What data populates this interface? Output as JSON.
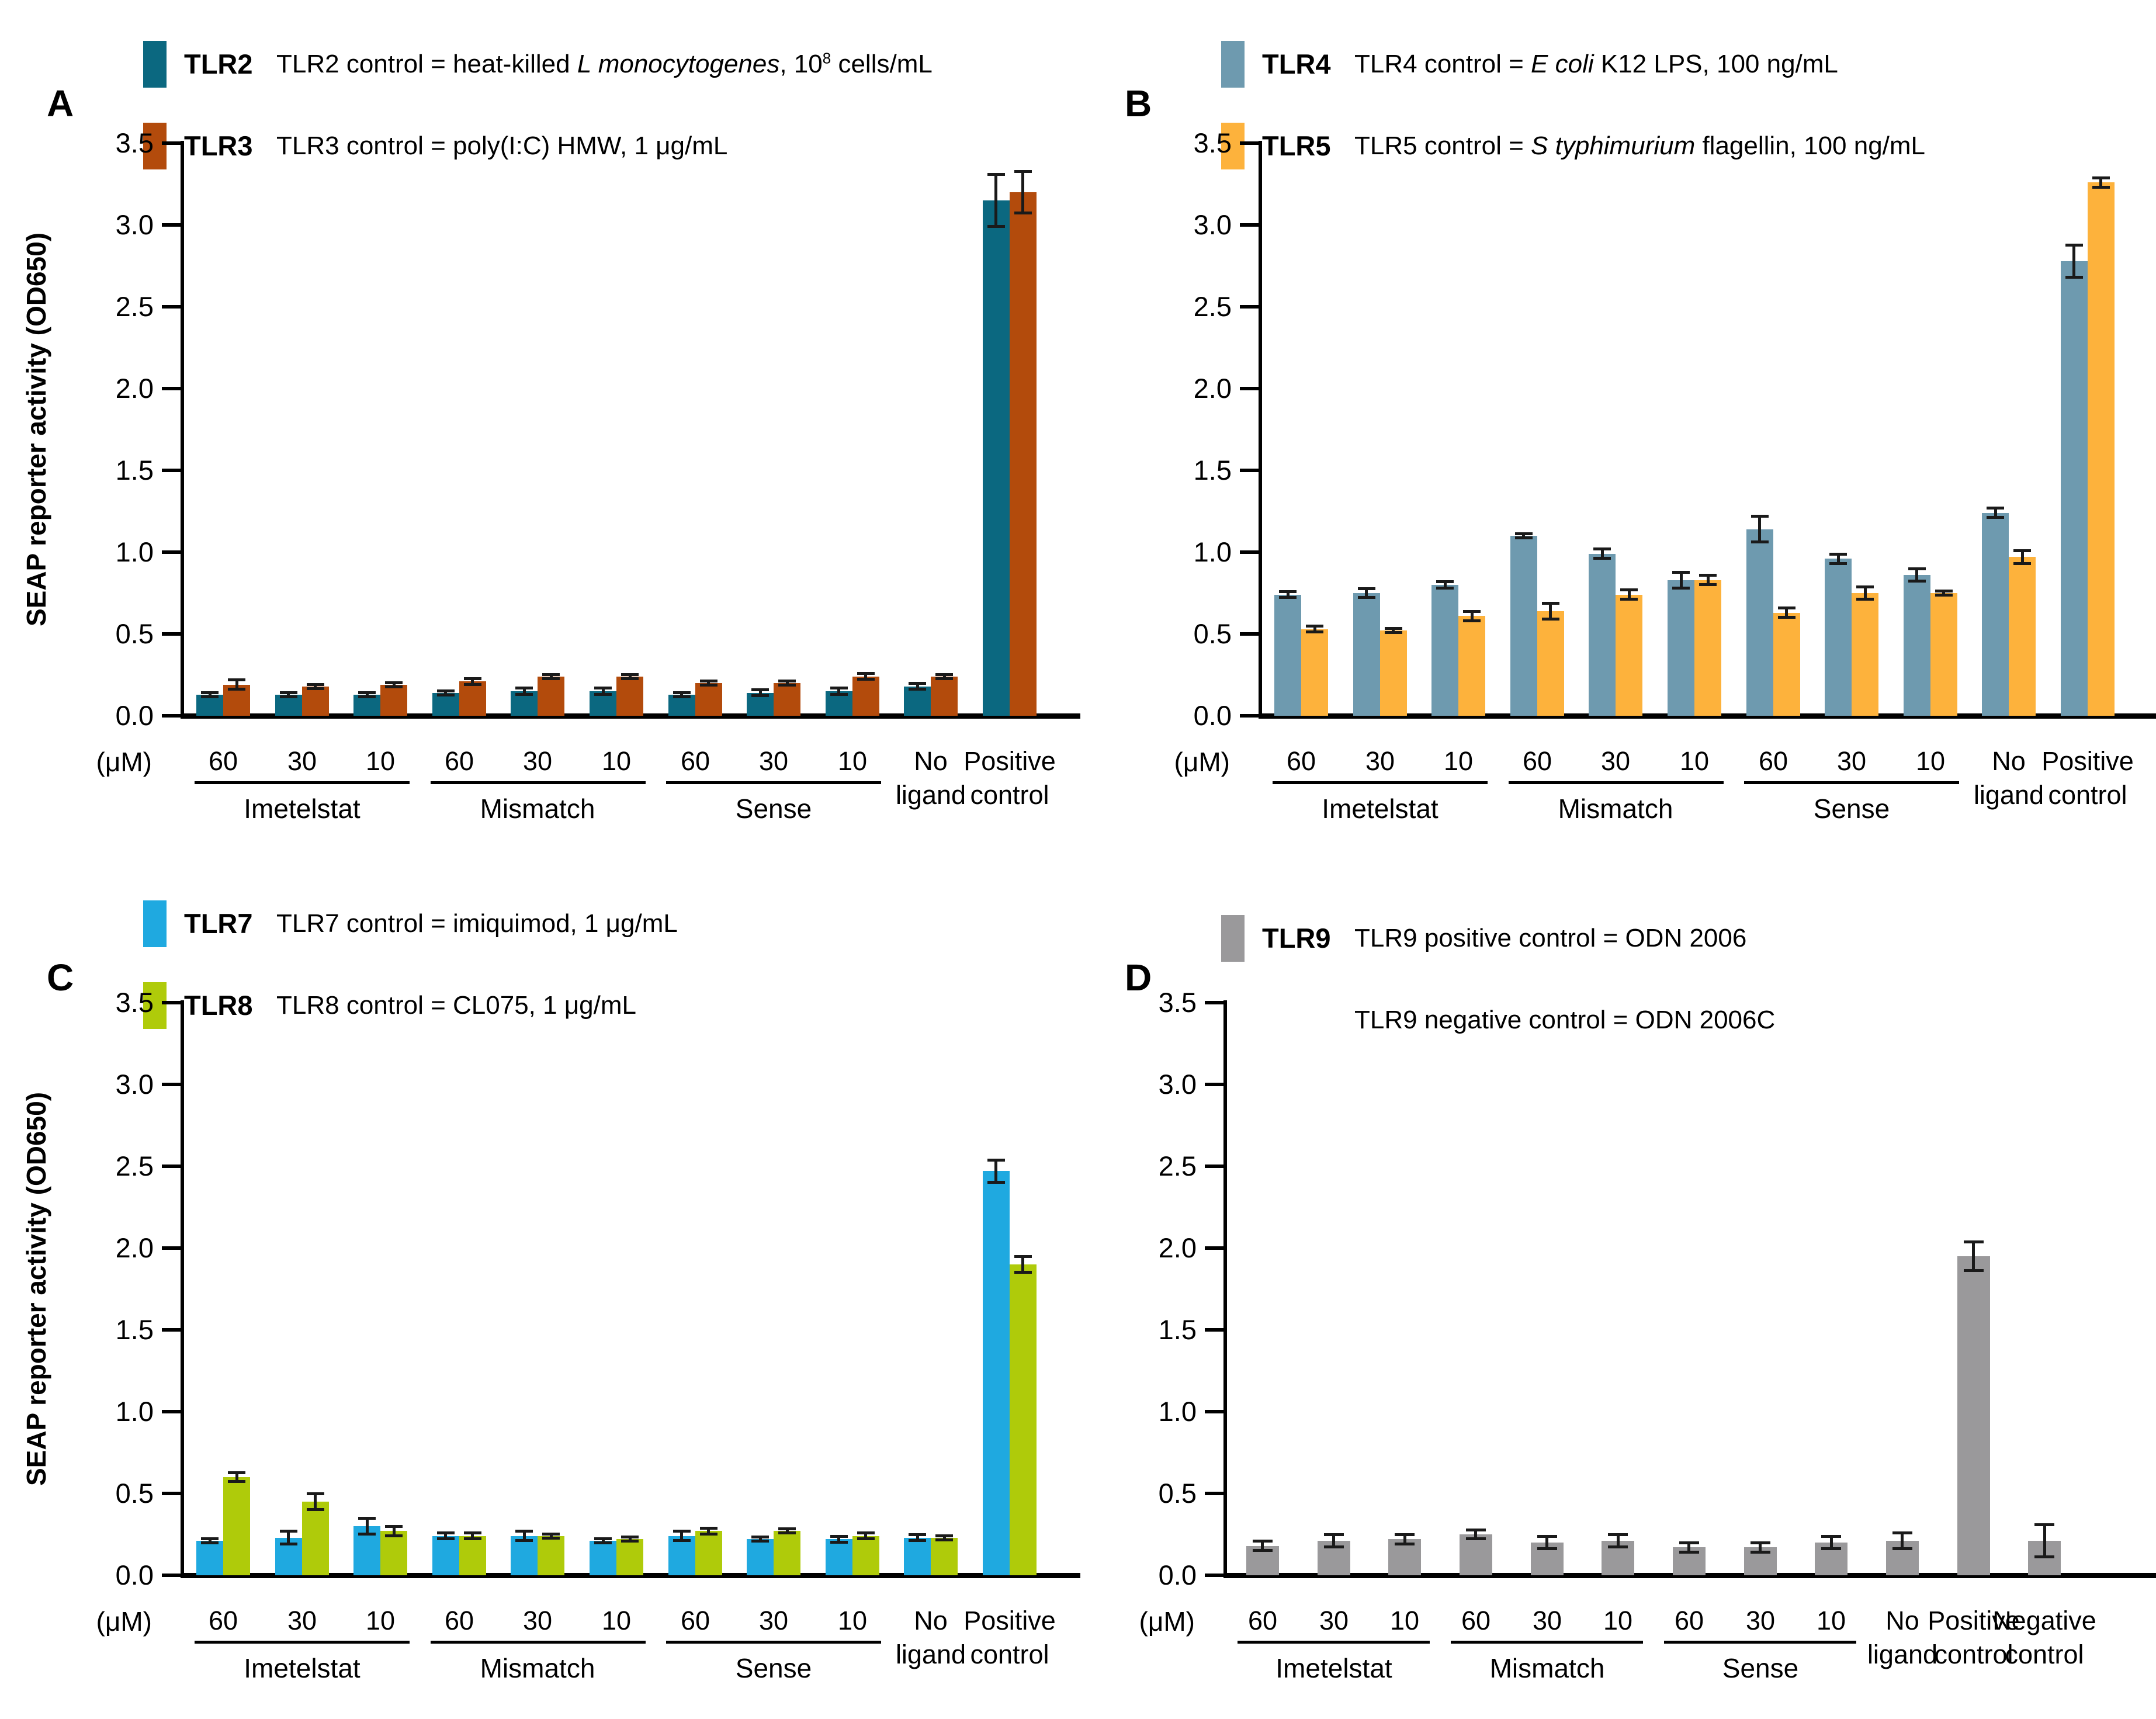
{
  "figure": {
    "um_label": "(μM)",
    "y_axis_title": "SEAP reporter activity (OD650)"
  },
  "chart_data": [
    {
      "id": "A",
      "panel_label": "A",
      "type": "bar",
      "ylim": [
        0,
        3.5
      ],
      "ytick_step": 0.5,
      "show_ylabel": true,
      "ylabel": "SEAP reporter activity (OD650)",
      "legend": [
        {
          "label": "TLR2",
          "color": "#0B6880",
          "parts": [
            {
              "t": "TLR2 control = heat-killed "
            },
            {
              "t": "L monocytogenes",
              "i": true
            },
            {
              "t": ", 10"
            },
            {
              "t": "8",
              "sup": true
            },
            {
              "t": " cells/mL"
            }
          ]
        },
        {
          "label": "TLR3",
          "color": "#B34B0C",
          "parts": [
            {
              "t": "TLR3 control = poly(I:C) HMW, 1 μg/mL"
            }
          ]
        }
      ],
      "categories": [
        [
          "60"
        ],
        [
          "30"
        ],
        [
          "10"
        ],
        [
          "60"
        ],
        [
          "30"
        ],
        [
          "10"
        ],
        [
          "60"
        ],
        [
          "30"
        ],
        [
          "10"
        ],
        [
          "No",
          "ligand"
        ],
        [
          "Positive",
          "control"
        ]
      ],
      "groups": [
        {
          "label": "Imetelstat",
          "from": 0,
          "to": 2
        },
        {
          "label": "Mismatch",
          "from": 3,
          "to": 5
        },
        {
          "label": "Sense",
          "from": 6,
          "to": 8
        }
      ],
      "series": [
        {
          "name": "TLR2",
          "color": "#0B6880",
          "values": [
            0.13,
            0.13,
            0.13,
            0.14,
            0.15,
            0.15,
            0.13,
            0.14,
            0.15,
            0.18,
            3.15
          ],
          "errors": [
            0.01,
            0.01,
            0.01,
            0.01,
            0.02,
            0.02,
            0.01,
            0.02,
            0.02,
            0.02,
            0.16
          ]
        },
        {
          "name": "TLR3",
          "color": "#B34B0C",
          "values": [
            0.19,
            0.18,
            0.19,
            0.21,
            0.24,
            0.24,
            0.2,
            0.2,
            0.24,
            0.24,
            3.2
          ],
          "errors": [
            0.03,
            0.01,
            0.01,
            0.02,
            0.01,
            0.01,
            0.015,
            0.015,
            0.02,
            0.015,
            0.13
          ]
        }
      ]
    },
    {
      "id": "B",
      "panel_label": "B",
      "type": "bar",
      "ylim": [
        0,
        3.5
      ],
      "ytick_step": 0.5,
      "show_ylabel": false,
      "legend": [
        {
          "label": "TLR4",
          "color": "#6E9AAF",
          "parts": [
            {
              "t": "TLR4 control = "
            },
            {
              "t": "E coli",
              "i": true
            },
            {
              "t": " K12 LPS, 100 ng/mL"
            }
          ]
        },
        {
          "label": "TLR5",
          "color": "#FDB23C",
          "parts": [
            {
              "t": "TLR5 control = "
            },
            {
              "t": "S typhimurium",
              "i": true
            },
            {
              "t": " flagellin, 100 ng/mL"
            }
          ]
        }
      ],
      "categories": [
        [
          "60"
        ],
        [
          "30"
        ],
        [
          "10"
        ],
        [
          "60"
        ],
        [
          "30"
        ],
        [
          "10"
        ],
        [
          "60"
        ],
        [
          "30"
        ],
        [
          "10"
        ],
        [
          "No",
          "ligand"
        ],
        [
          "Positive",
          "control"
        ]
      ],
      "groups": [
        {
          "label": "Imetelstat",
          "from": 0,
          "to": 2
        },
        {
          "label": "Mismatch",
          "from": 3,
          "to": 5
        },
        {
          "label": "Sense",
          "from": 6,
          "to": 8
        }
      ],
      "series": [
        {
          "name": "TLR4",
          "color": "#6E9AAF",
          "values": [
            0.74,
            0.75,
            0.8,
            1.1,
            0.99,
            0.83,
            1.14,
            0.96,
            0.86,
            1.24,
            2.78
          ],
          "errors": [
            0.02,
            0.03,
            0.02,
            0.01,
            0.03,
            0.05,
            0.08,
            0.03,
            0.04,
            0.03,
            0.1
          ]
        },
        {
          "name": "TLR5",
          "color": "#FDB23C",
          "values": [
            0.53,
            0.52,
            0.61,
            0.64,
            0.74,
            0.83,
            0.63,
            0.75,
            0.75,
            0.97,
            3.26
          ],
          "errors": [
            0.02,
            0.01,
            0.03,
            0.05,
            0.03,
            0.03,
            0.03,
            0.04,
            0.01,
            0.04,
            0.03
          ]
        }
      ]
    },
    {
      "id": "C",
      "panel_label": "C",
      "type": "bar",
      "ylim": [
        0,
        3.5
      ],
      "ytick_step": 0.5,
      "show_ylabel": true,
      "ylabel": "SEAP reporter activity (OD650)",
      "legend": [
        {
          "label": "TLR7",
          "color": "#1FA9E0",
          "parts": [
            {
              "t": "TLR7 control = imiquimod, 1 μg/mL"
            }
          ]
        },
        {
          "label": "TLR8",
          "color": "#AFCB0A",
          "parts": [
            {
              "t": "TLR8 control = CL075, 1 μg/mL"
            }
          ]
        }
      ],
      "categories": [
        [
          "60"
        ],
        [
          "30"
        ],
        [
          "10"
        ],
        [
          "60"
        ],
        [
          "30"
        ],
        [
          "10"
        ],
        [
          "60"
        ],
        [
          "30"
        ],
        [
          "10"
        ],
        [
          "No",
          "ligand"
        ],
        [
          "Positive",
          "control"
        ]
      ],
      "groups": [
        {
          "label": "Imetelstat",
          "from": 0,
          "to": 2
        },
        {
          "label": "Mismatch",
          "from": 3,
          "to": 5
        },
        {
          "label": "Sense",
          "from": 6,
          "to": 8
        }
      ],
      "series": [
        {
          "name": "TLR7",
          "color": "#1FA9E0",
          "values": [
            0.21,
            0.23,
            0.3,
            0.24,
            0.24,
            0.21,
            0.24,
            0.22,
            0.22,
            0.23,
            2.47
          ],
          "errors": [
            0.01,
            0.04,
            0.05,
            0.02,
            0.03,
            0.01,
            0.03,
            0.01,
            0.02,
            0.02,
            0.07
          ]
        },
        {
          "name": "TLR8",
          "color": "#AFCB0A",
          "values": [
            0.6,
            0.45,
            0.27,
            0.24,
            0.24,
            0.22,
            0.27,
            0.27,
            0.24,
            0.23,
            1.9
          ],
          "errors": [
            0.03,
            0.05,
            0.03,
            0.02,
            0.01,
            0.01,
            0.02,
            0.01,
            0.02,
            0.01,
            0.05
          ]
        }
      ]
    },
    {
      "id": "D",
      "panel_label": "D",
      "type": "bar",
      "ylim": [
        0,
        3.5
      ],
      "ytick_step": 0.5,
      "show_ylabel": false,
      "legend": [
        {
          "label": "TLR9",
          "color": "#9A999B",
          "parts": [
            {
              "t": "TLR9 positive control = ODN 2006"
            }
          ]
        },
        {
          "label": "",
          "color": null,
          "parts": [
            {
              "t": "TLR9 negative control = ODN 2006C"
            }
          ]
        }
      ],
      "categories": [
        [
          "60"
        ],
        [
          "30"
        ],
        [
          "10"
        ],
        [
          "60"
        ],
        [
          "30"
        ],
        [
          "10"
        ],
        [
          "60"
        ],
        [
          "30"
        ],
        [
          "10"
        ],
        [
          "No",
          "ligand"
        ],
        [
          "Positive",
          "control"
        ],
        [
          "Negative",
          "control"
        ]
      ],
      "groups": [
        {
          "label": "Imetelstat",
          "from": 0,
          "to": 2
        },
        {
          "label": "Mismatch",
          "from": 3,
          "to": 5
        },
        {
          "label": "Sense",
          "from": 6,
          "to": 8
        }
      ],
      "series": [
        {
          "name": "TLR9",
          "color": "#9A999B",
          "values": [
            0.18,
            0.21,
            0.22,
            0.25,
            0.2,
            0.21,
            0.17,
            0.17,
            0.2,
            0.21,
            1.95,
            0.21
          ],
          "errors": [
            0.03,
            0.04,
            0.03,
            0.03,
            0.04,
            0.04,
            0.03,
            0.03,
            0.04,
            0.05,
            0.09,
            0.1
          ]
        }
      ]
    }
  ]
}
